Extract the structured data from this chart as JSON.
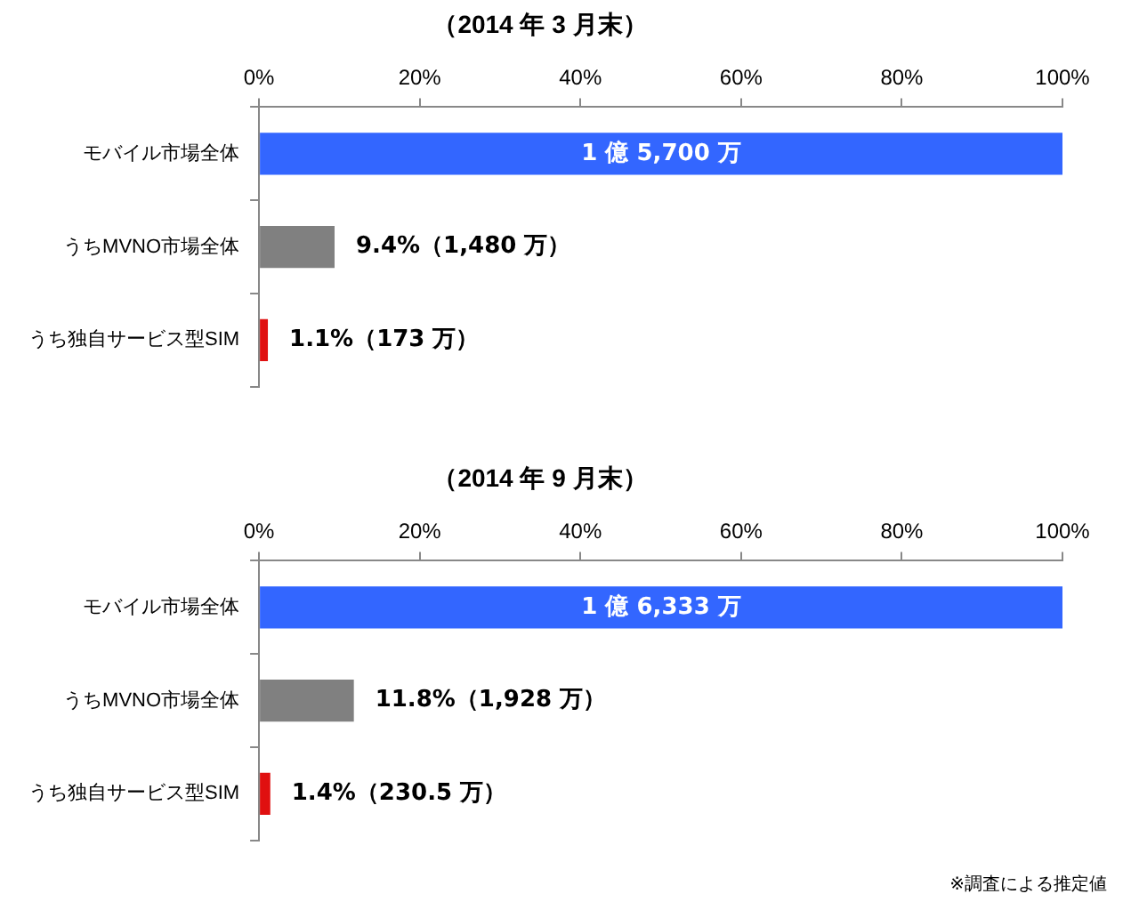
{
  "chart_data": [
    {
      "type": "bar",
      "orientation": "horizontal",
      "title": "（2014 年 3 月末）",
      "categories": [
        "モバイル市場全体",
        "うちMVNO市場全体",
        "うち独自サービス型SIM"
      ],
      "values": [
        100,
        9.4,
        1.1
      ],
      "colors": [
        "#3366ff",
        "#808080",
        "#e01010"
      ],
      "value_labels": [
        null,
        "9.4%（1,480 万）",
        "1.1%（173 万）"
      ],
      "annotations": [
        "1 億 5,700 万"
      ],
      "xlim": [
        0,
        100
      ],
      "xticks": [
        {
          "value": 0,
          "label": "0%"
        },
        {
          "value": 20,
          "label": "20%"
        },
        {
          "value": 40,
          "label": "40%"
        },
        {
          "value": 60,
          "label": "60%"
        },
        {
          "value": 80,
          "label": "80%"
        },
        {
          "value": 100,
          "label": "100%"
        }
      ],
      "grid": false,
      "legend": false
    },
    {
      "type": "bar",
      "orientation": "horizontal",
      "title": "（2014 年 9 月末）",
      "categories": [
        "モバイル市場全体",
        "うちMVNO市場全体",
        "うち独自サービス型SIM"
      ],
      "values": [
        100,
        11.8,
        1.4
      ],
      "colors": [
        "#3366ff",
        "#808080",
        "#e01010"
      ],
      "value_labels": [
        null,
        "11.8%（1,928 万）",
        "1.4%（230.5 万）"
      ],
      "xlim": [
        0,
        100
      ],
      "xticks": [
        {
          "value": 0,
          "label": "0%"
        },
        {
          "value": 20,
          "label": "20%"
        },
        {
          "value": 40,
          "label": "40%"
        },
        {
          "value": 60,
          "label": "60%"
        },
        {
          "value": 80,
          "label": "80%"
        },
        {
          "value": 100,
          "label": "100%"
        }
      ],
      "grid": false,
      "legend": false,
      "annotations": [
        "1 億 6,333 万",
        "※調査による推定値"
      ]
    }
  ]
}
